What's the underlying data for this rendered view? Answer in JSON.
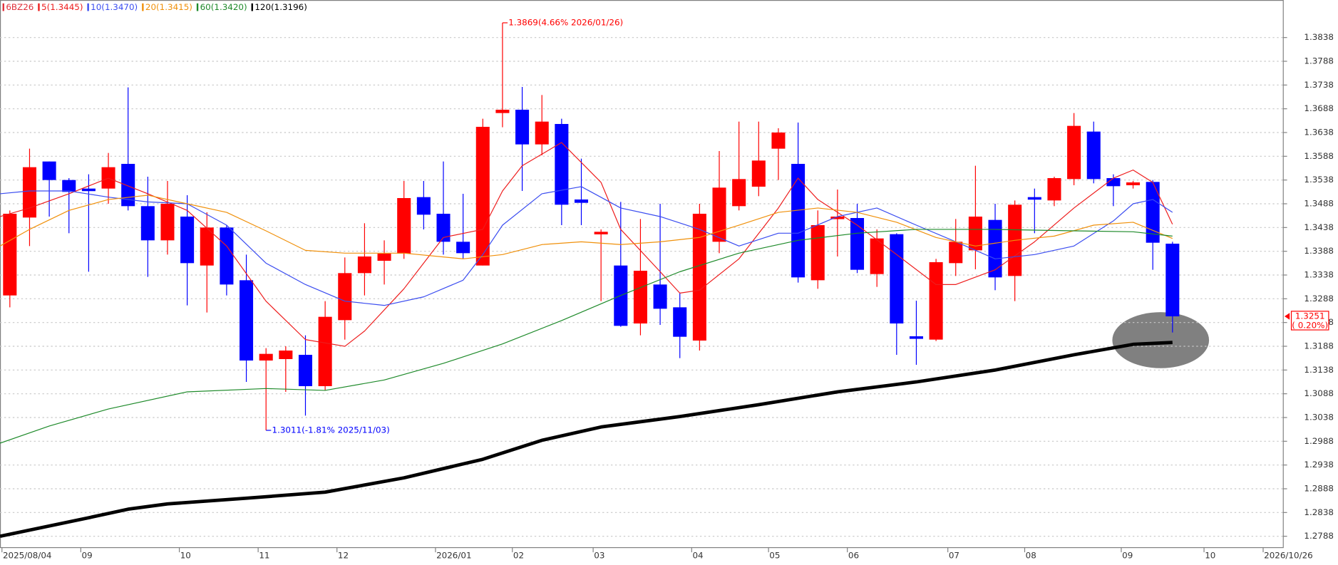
{
  "chart_data": {
    "type": "candlestick",
    "symbol": "6BZ26",
    "symbol_color": "#e0303a",
    "up_color": "#ff0000",
    "down_color": "#0000ff",
    "open": [
      1.3295,
      1.3459,
      1.3577,
      1.3538,
      1.352,
      1.352,
      1.3572,
      1.3483,
      1.3411,
      1.3461,
      1.3358,
      1.3438,
      1.3327,
      1.3158,
      1.3161,
      1.317,
      1.3104,
      1.3243,
      1.3342,
      1.3368,
      1.3383,
      1.3502,
      1.3467,
      1.3408,
      1.3358,
      1.3679,
      1.3686,
      1.3613,
      1.3656,
      1.3497,
      1.3424,
      1.3358,
      1.3236,
      1.3318,
      1.327,
      1.32,
      1.3408,
      1.3483,
      1.3524,
      1.3604,
      1.3572,
      1.3327,
      1.3456,
      1.3458,
      1.334,
      1.3424,
      1.3209,
      1.3202,
      1.3363,
      1.339,
      1.3454,
      1.3336,
      1.3502,
      1.3495,
      1.354,
      1.364,
      1.3542,
      1.3527,
      1.3534,
      1.3404
    ],
    "high": [
      1.3474,
      1.3604,
      1.3577,
      1.3542,
      1.355,
      1.3595,
      1.3733,
      1.3545,
      1.3536,
      1.3506,
      1.347,
      1.3443,
      1.3381,
      1.3184,
      1.3188,
      1.3211,
      1.3283,
      1.3375,
      1.3447,
      1.3411,
      1.3536,
      1.3536,
      1.3577,
      1.3509,
      1.3667,
      1.3869,
      1.3734,
      1.3717,
      1.3667,
      1.3583,
      1.3434,
      1.3492,
      1.3456,
      1.3488,
      1.33,
      1.3488,
      1.3599,
      1.3661,
      1.3661,
      1.3647,
      1.3659,
      1.3474,
      1.3518,
      1.3488,
      1.3434,
      1.3426,
      1.3284,
      1.3372,
      1.3456,
      1.3568,
      1.3488,
      1.3495,
      1.352,
      1.3545,
      1.3679,
      1.3661,
      1.355,
      1.3536,
      1.3538,
      1.3408
    ],
    "low": [
      1.327,
      1.3399,
      1.3461,
      1.3426,
      1.3345,
      1.3488,
      1.3474,
      1.3334,
      1.3381,
      1.3274,
      1.3259,
      1.3295,
      1.3113,
      1.3011,
      1.3092,
      1.3042,
      1.3095,
      1.3202,
      1.3295,
      1.3318,
      1.3372,
      1.3434,
      1.3381,
      1.3372,
      1.3358,
      1.3649,
      1.3515,
      1.359,
      1.3443,
      1.3443,
      1.3283,
      1.3229,
      1.3211,
      1.3233,
      1.3163,
      1.3179,
      1.3384,
      1.3474,
      1.3504,
      1.3538,
      1.3322,
      1.3309,
      1.3377,
      1.3342,
      1.3313,
      1.317,
      1.3149,
      1.3199,
      1.3336,
      1.335,
      1.3306,
      1.3283,
      1.3426,
      1.3483,
      1.3527,
      1.3531,
      1.3483,
      1.352,
      1.3349,
      1.3217
    ],
    "close": [
      1.3467,
      1.3565,
      1.3538,
      1.3513,
      1.3515,
      1.3565,
      1.3483,
      1.3411,
      1.3488,
      1.3363,
      1.3438,
      1.3318,
      1.3158,
      1.3172,
      1.3179,
      1.3104,
      1.325,
      1.3342,
      1.3377,
      1.3383,
      1.35,
      1.3465,
      1.3408,
      1.3384,
      1.365,
      1.3686,
      1.3613,
      1.3661,
      1.3486,
      1.349,
      1.3429,
      1.3231,
      1.3347,
      1.3267,
      1.3208,
      1.3467,
      1.3522,
      1.354,
      1.3579,
      1.3638,
      1.3333,
      1.3443,
      1.3461,
      1.3349,
      1.3415,
      1.3236,
      1.3206,
      1.3365,
      1.3408,
      1.3461,
      1.3333,
      1.3486,
      1.3499,
      1.3542,
      1.3652,
      1.354,
      1.3525,
      1.3533,
      1.3406,
      1.3251
    ],
    "series": [
      {
        "name": "5(1.3445)",
        "color": "#ee1c1c",
        "width": 1,
        "x": [
          -0.5,
          1,
          3,
          5,
          7,
          9,
          11,
          13,
          15,
          17,
          18,
          20,
          22,
          24,
          25,
          26,
          28,
          30,
          31,
          33,
          34,
          35,
          37,
          39,
          40,
          41,
          43,
          45,
          47,
          48,
          50,
          52,
          54,
          56,
          57,
          58,
          59
        ],
        "values": [
          1.3461,
          1.3479,
          1.3509,
          1.3542,
          1.3509,
          1.3474,
          1.3399,
          1.3283,
          1.3202,
          1.3188,
          1.322,
          1.3309,
          1.3417,
          1.3434,
          1.3515,
          1.3568,
          1.3617,
          1.3533,
          1.3434,
          1.3345,
          1.33,
          1.3306,
          1.3372,
          1.3479,
          1.3542,
          1.3497,
          1.3443,
          1.3381,
          1.3318,
          1.3318,
          1.3349,
          1.3408,
          1.3479,
          1.3542,
          1.3559,
          1.3533,
          1.3445
        ]
      },
      {
        "name": "10(1.3470)",
        "color": "#3a4cf0",
        "width": 1,
        "x": [
          -0.5,
          1,
          3,
          5,
          7,
          9,
          11,
          13,
          15,
          17,
          19,
          21,
          23,
          24,
          25,
          27,
          29,
          31,
          33,
          35,
          37,
          39,
          40,
          42,
          44,
          46,
          48,
          50,
          52,
          54,
          56,
          57,
          58,
          59
        ],
        "values": [
          1.3509,
          1.3515,
          1.3515,
          1.3502,
          1.3492,
          1.3488,
          1.3443,
          1.3363,
          1.3318,
          1.3283,
          1.3274,
          1.3292,
          1.3327,
          1.3381,
          1.3443,
          1.3509,
          1.3524,
          1.3479,
          1.3461,
          1.3434,
          1.3399,
          1.3426,
          1.3426,
          1.3461,
          1.3479,
          1.3443,
          1.3408,
          1.3372,
          1.3381,
          1.3399,
          1.3452,
          1.3488,
          1.3497,
          1.347
        ]
      },
      {
        "name": "20(1.3415)",
        "color": "#f0900a",
        "width": 1,
        "x": [
          -0.5,
          1,
          3,
          5,
          7,
          9,
          11,
          13,
          15,
          17,
          20,
          23,
          25,
          27,
          29,
          31,
          33,
          35,
          37,
          39,
          41,
          43,
          45,
          47,
          49,
          51,
          53,
          55,
          57,
          59
        ],
        "values": [
          1.3399,
          1.3434,
          1.3474,
          1.3497,
          1.3506,
          1.3488,
          1.347,
          1.3431,
          1.339,
          1.3384,
          1.3384,
          1.3372,
          1.3381,
          1.3402,
          1.3408,
          1.3402,
          1.3408,
          1.3417,
          1.3443,
          1.347,
          1.3479,
          1.347,
          1.3449,
          1.3417,
          1.3399,
          1.3411,
          1.342,
          1.3443,
          1.3449,
          1.3415
        ]
      },
      {
        "name": "60(1.3420)",
        "color": "#1e8a2a",
        "width": 1,
        "x": [
          -0.5,
          2,
          5,
          9,
          13,
          16,
          19,
          22,
          25,
          28,
          31,
          34,
          37,
          40,
          43,
          46,
          50,
          54,
          57,
          59
        ],
        "values": [
          1.2984,
          1.302,
          1.3056,
          1.3092,
          1.3099,
          1.3095,
          1.3117,
          1.3152,
          1.3193,
          1.3242,
          1.3295,
          1.3345,
          1.3384,
          1.3411,
          1.3426,
          1.3434,
          1.3434,
          1.3431,
          1.3429,
          1.342
        ]
      },
      {
        "name": "120(1.3196)",
        "color": "#000000",
        "width": 4,
        "x": [
          -0.5,
          4,
          6,
          8,
          12,
          16,
          20,
          24,
          27,
          30,
          34,
          38,
          42,
          46,
          50,
          54,
          57,
          59
        ],
        "values": [
          1.2788,
          1.2827,
          1.2845,
          1.2856,
          1.2868,
          1.2881,
          1.2911,
          1.295,
          1.299,
          1.3018,
          1.304,
          1.3065,
          1.3092,
          1.3113,
          1.3138,
          1.317,
          1.3192,
          1.3196
        ]
      }
    ],
    "high_label": "1.3869(4.66% 2026/01/26)",
    "low_label": "1.3011(-1.81% 2025/11/03)",
    "change_label": "( 0.20%)",
    "xlim": [
      -0.5,
      64.6
    ],
    "xticks": [
      {
        "value": -0.4,
        "label": "2025/08/04"
      },
      {
        "value": 3.6,
        "label": "09"
      },
      {
        "value": 8.6,
        "label": "10"
      },
      {
        "value": 12.6,
        "label": "11"
      },
      {
        "value": 16.6,
        "label": "12"
      },
      {
        "value": 21.6,
        "label": "2026/01"
      },
      {
        "value": 25.5,
        "label": "02"
      },
      {
        "value": 29.6,
        "label": "03"
      },
      {
        "value": 34.6,
        "label": "04"
      },
      {
        "value": 38.5,
        "label": "05"
      },
      {
        "value": 42.5,
        "label": "06"
      },
      {
        "value": 47.6,
        "label": "07"
      },
      {
        "value": 51.5,
        "label": "08"
      },
      {
        "value": 56.4,
        "label": "09"
      },
      {
        "value": 60.6,
        "label": "10"
      },
      {
        "value": 63.6,
        "label": "2026/10/26"
      }
    ],
    "ylim": [
      1.2765,
      1.3917
    ],
    "yticks": [
      1.2788,
      1.2838,
      1.2888,
      1.2938,
      1.2988,
      1.3038,
      1.3088,
      1.3138,
      1.3188,
      1.3238,
      1.3288,
      1.3338,
      1.3388,
      1.3438,
      1.3488,
      1.3538,
      1.3588,
      1.3638,
      1.3688,
      1.3738,
      1.3788,
      1.3838
    ],
    "grid": true
  }
}
